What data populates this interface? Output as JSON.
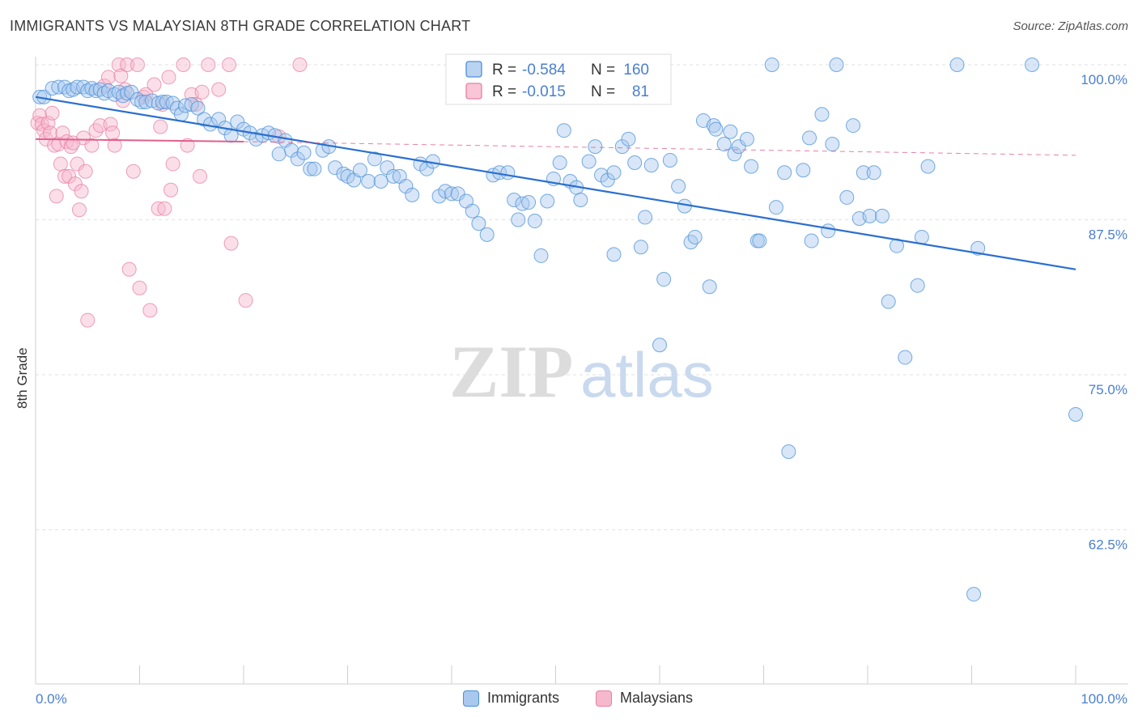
{
  "title": "IMMIGRANTS VS MALAYSIAN 8TH GRADE CORRELATION CHART",
  "source": "Source: ZipAtlas.com",
  "watermark": {
    "zip": "ZIP",
    "atlas": "atlas"
  },
  "colors": {
    "blue": "#4a90d9",
    "blue_fill": "#a9c8ee",
    "blue_line": "#2a6fcf",
    "pink": "#e87fa3",
    "pink_fill": "#f6b8cc",
    "pink_line": "#e0608a",
    "axis_label": "#4a7fd0"
  },
  "legend_top": {
    "rows": [
      {
        "r_label": "R =",
        "r_value": "-0.584",
        "n_label": "N =",
        "n_value": "160"
      },
      {
        "r_label": "R =",
        "r_value": "-0.015",
        "n_label": "N =",
        "n_value": "81"
      }
    ]
  },
  "legend_bottom": {
    "items": [
      "Immigrants",
      "Malaysians"
    ]
  },
  "chart_data": {
    "type": "scatter",
    "title": "IMMIGRANTS VS MALAYSIAN 8TH GRADE CORRELATION CHART",
    "xlabel": "",
    "ylabel": "8th Grade",
    "xlim": [
      0,
      100
    ],
    "ylim": [
      53,
      101
    ],
    "x_tick_labels": [
      "0.0%",
      "100.0%"
    ],
    "y_ticks": [
      62.5,
      75.0,
      87.5,
      100.0
    ],
    "y_tick_labels": [
      "62.5%",
      "75.0%",
      "87.5%",
      "100.0%"
    ],
    "grid": true,
    "legend_position": "top-center",
    "series": [
      {
        "name": "Immigrants",
        "trend": {
          "x0": 0,
          "y0": 97.4,
          "x1": 100,
          "y1": 83.5
        },
        "points": [
          [
            0.4,
            97.4
          ],
          [
            0.8,
            97.4
          ],
          [
            1.6,
            98.1
          ],
          [
            2.2,
            98.2
          ],
          [
            2.8,
            98.2
          ],
          [
            3.2,
            97.9
          ],
          [
            3.6,
            98.0
          ],
          [
            4.0,
            98.2
          ],
          [
            4.6,
            98.2
          ],
          [
            5.0,
            97.9
          ],
          [
            5.4,
            98.1
          ],
          [
            5.8,
            97.9
          ],
          [
            6.2,
            98.0
          ],
          [
            6.6,
            97.7
          ],
          [
            7.0,
            97.9
          ],
          [
            7.6,
            97.6
          ],
          [
            8.0,
            97.8
          ],
          [
            8.4,
            97.5
          ],
          [
            8.8,
            97.7
          ],
          [
            9.2,
            97.8
          ],
          [
            9.8,
            97.2
          ],
          [
            10.2,
            97.0
          ],
          [
            10.6,
            97.0
          ],
          [
            11.2,
            97.1
          ],
          [
            11.8,
            96.9
          ],
          [
            12.2,
            97.0
          ],
          [
            12.6,
            97.0
          ],
          [
            13.2,
            96.9
          ],
          [
            13.6,
            96.5
          ],
          [
            14.0,
            96.0
          ],
          [
            14.4,
            96.7
          ],
          [
            15.0,
            96.8
          ],
          [
            15.6,
            96.5
          ],
          [
            16.2,
            95.6
          ],
          [
            16.8,
            95.2
          ],
          [
            17.6,
            95.6
          ],
          [
            18.2,
            94.9
          ],
          [
            18.8,
            94.3
          ],
          [
            19.4,
            95.4
          ],
          [
            20.0,
            94.8
          ],
          [
            20.6,
            94.5
          ],
          [
            21.2,
            94.0
          ],
          [
            21.8,
            94.3
          ],
          [
            22.4,
            94.5
          ],
          [
            23.0,
            94.3
          ],
          [
            23.4,
            92.8
          ],
          [
            24.0,
            93.9
          ],
          [
            24.6,
            93.1
          ],
          [
            25.2,
            92.4
          ],
          [
            25.8,
            92.9
          ],
          [
            26.4,
            91.6
          ],
          [
            26.8,
            91.6
          ],
          [
            27.6,
            93.1
          ],
          [
            28.2,
            93.4
          ],
          [
            28.8,
            91.7
          ],
          [
            29.6,
            91.2
          ],
          [
            30.0,
            91.0
          ],
          [
            30.6,
            90.7
          ],
          [
            31.2,
            91.5
          ],
          [
            32.0,
            90.6
          ],
          [
            32.6,
            92.4
          ],
          [
            33.2,
            90.6
          ],
          [
            33.8,
            91.7
          ],
          [
            34.4,
            91.0
          ],
          [
            35.0,
            91.0
          ],
          [
            35.6,
            90.2
          ],
          [
            36.2,
            89.5
          ],
          [
            37.0,
            92.0
          ],
          [
            37.6,
            91.6
          ],
          [
            38.2,
            92.2
          ],
          [
            38.8,
            89.4
          ],
          [
            39.4,
            89.8
          ],
          [
            40.0,
            89.6
          ],
          [
            40.6,
            89.6
          ],
          [
            41.4,
            89.0
          ],
          [
            42.0,
            88.2
          ],
          [
            42.6,
            87.2
          ],
          [
            43.4,
            86.3
          ],
          [
            44.0,
            91.1
          ],
          [
            44.6,
            91.3
          ],
          [
            45.4,
            91.3
          ],
          [
            46.0,
            89.1
          ],
          [
            46.4,
            87.5
          ],
          [
            46.8,
            88.8
          ],
          [
            47.4,
            88.9
          ],
          [
            48.0,
            87.4
          ],
          [
            48.6,
            84.6
          ],
          [
            49.2,
            89.0
          ],
          [
            49.8,
            90.8
          ],
          [
            50.4,
            92.1
          ],
          [
            50.8,
            94.7
          ],
          [
            51.4,
            90.6
          ],
          [
            52.0,
            90.1
          ],
          [
            52.4,
            89.1
          ],
          [
            53.2,
            92.2
          ],
          [
            53.8,
            93.4
          ],
          [
            54.4,
            91.1
          ],
          [
            55.0,
            90.7
          ],
          [
            55.6,
            91.3
          ],
          [
            55.6,
            84.7
          ],
          [
            56.4,
            93.4
          ],
          [
            57.0,
            94.0
          ],
          [
            57.6,
            92.1
          ],
          [
            58.2,
            85.3
          ],
          [
            58.6,
            87.7
          ],
          [
            59.2,
            91.9
          ],
          [
            60.0,
            77.4
          ],
          [
            60.4,
            82.7
          ],
          [
            61.0,
            92.3
          ],
          [
            61.8,
            90.2
          ],
          [
            62.4,
            88.6
          ],
          [
            63.0,
            85.7
          ],
          [
            63.4,
            86.1
          ],
          [
            64.2,
            95.5
          ],
          [
            64.8,
            82.1
          ],
          [
            65.2,
            95.1
          ],
          [
            65.4,
            94.8
          ],
          [
            66.2,
            93.6
          ],
          [
            66.8,
            94.6
          ],
          [
            67.2,
            92.8
          ],
          [
            67.6,
            93.4
          ],
          [
            68.4,
            94.0
          ],
          [
            68.8,
            91.8
          ],
          [
            69.4,
            85.8
          ],
          [
            69.6,
            85.8
          ],
          [
            70.8,
            100.0
          ],
          [
            71.2,
            88.5
          ],
          [
            72.0,
            91.3
          ],
          [
            72.4,
            68.8
          ],
          [
            73.8,
            91.5
          ],
          [
            74.4,
            94.1
          ],
          [
            74.6,
            85.8
          ],
          [
            75.6,
            96.0
          ],
          [
            76.2,
            86.6
          ],
          [
            76.6,
            93.6
          ],
          [
            77.0,
            100.0
          ],
          [
            78.0,
            89.3
          ],
          [
            78.6,
            95.1
          ],
          [
            79.2,
            87.6
          ],
          [
            79.6,
            91.3
          ],
          [
            80.2,
            87.8
          ],
          [
            80.6,
            91.3
          ],
          [
            81.4,
            87.8
          ],
          [
            82.0,
            80.9
          ],
          [
            82.8,
            85.4
          ],
          [
            83.6,
            76.4
          ],
          [
            84.8,
            82.2
          ],
          [
            85.2,
            86.1
          ],
          [
            85.8,
            91.8
          ],
          [
            88.6,
            100.0
          ],
          [
            90.2,
            57.3
          ],
          [
            90.6,
            85.2
          ],
          [
            95.8,
            100.0
          ],
          [
            100.0,
            71.8
          ]
        ]
      },
      {
        "name": "Malaysians",
        "trend": {
          "x0": 0,
          "y0": 94.0,
          "x1": 20.0,
          "y1": 93.8,
          "x_dash_end": 100,
          "y_dash_end": 92.7
        },
        "points": [
          [
            0.2,
            95.3
          ],
          [
            0.4,
            95.9
          ],
          [
            0.6,
            95.2
          ],
          [
            0.8,
            94.7
          ],
          [
            1.0,
            94.0
          ],
          [
            1.2,
            95.3
          ],
          [
            1.4,
            94.5
          ],
          [
            1.6,
            96.1
          ],
          [
            1.8,
            93.5
          ],
          [
            2.0,
            89.4
          ],
          [
            2.2,
            93.6
          ],
          [
            2.4,
            92.0
          ],
          [
            2.6,
            94.5
          ],
          [
            2.8,
            91.0
          ],
          [
            3.0,
            93.8
          ],
          [
            3.2,
            91.0
          ],
          [
            3.4,
            93.4
          ],
          [
            3.6,
            93.7
          ],
          [
            3.8,
            90.4
          ],
          [
            4.0,
            92.0
          ],
          [
            4.2,
            88.3
          ],
          [
            4.4,
            89.8
          ],
          [
            4.6,
            94.1
          ],
          [
            4.8,
            91.4
          ],
          [
            5.0,
            79.4
          ],
          [
            5.4,
            93.5
          ],
          [
            5.8,
            94.7
          ],
          [
            6.2,
            95.1
          ],
          [
            6.6,
            98.3
          ],
          [
            7.0,
            99.0
          ],
          [
            7.2,
            95.2
          ],
          [
            7.4,
            94.5
          ],
          [
            7.6,
            93.5
          ],
          [
            8.0,
            100.0
          ],
          [
            8.2,
            99.1
          ],
          [
            8.4,
            97.1
          ],
          [
            8.6,
            98.0
          ],
          [
            8.8,
            100.0
          ],
          [
            9.0,
            83.5
          ],
          [
            9.4,
            91.4
          ],
          [
            9.8,
            100.0
          ],
          [
            10.0,
            82.0
          ],
          [
            10.4,
            97.4
          ],
          [
            10.6,
            97.6
          ],
          [
            11.0,
            80.2
          ],
          [
            11.4,
            98.4
          ],
          [
            11.8,
            88.4
          ],
          [
            12.0,
            95.0
          ],
          [
            12.2,
            96.8
          ],
          [
            12.4,
            88.4
          ],
          [
            12.8,
            99.0
          ],
          [
            13.0,
            89.9
          ],
          [
            13.2,
            92.0
          ],
          [
            14.2,
            100.0
          ],
          [
            14.6,
            93.5
          ],
          [
            15.0,
            97.6
          ],
          [
            15.4,
            96.8
          ],
          [
            15.8,
            91.0
          ],
          [
            16.0,
            97.8
          ],
          [
            16.6,
            100.0
          ],
          [
            17.6,
            98.0
          ],
          [
            18.6,
            100.0
          ],
          [
            18.8,
            85.6
          ],
          [
            20.2,
            81.0
          ],
          [
            23.4,
            94.2
          ],
          [
            25.4,
            100.0
          ]
        ]
      }
    ]
  }
}
